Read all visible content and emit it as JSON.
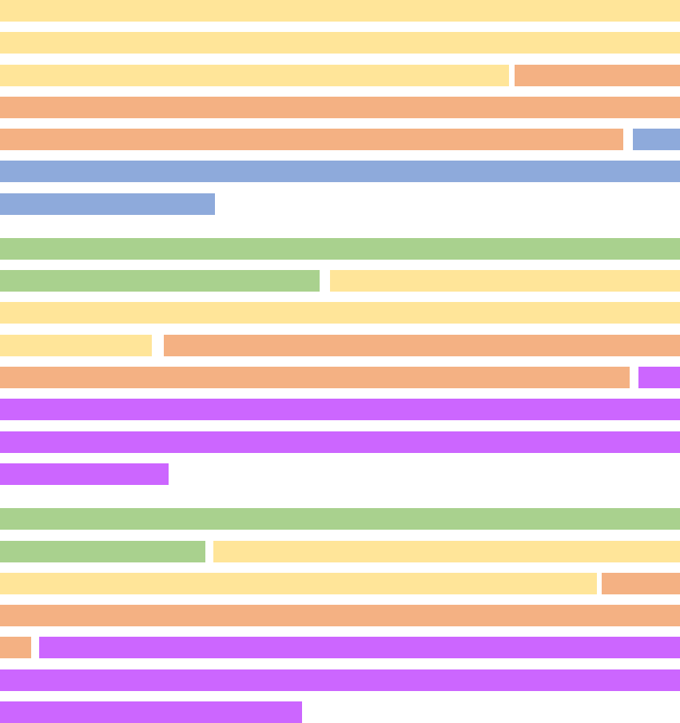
{
  "colors": {
    "yellow": "#ffe599",
    "orange": "#f4b183",
    "blue": "#8eaadb",
    "green": "#a9d18e",
    "purple": "#cc66ff"
  }
}
